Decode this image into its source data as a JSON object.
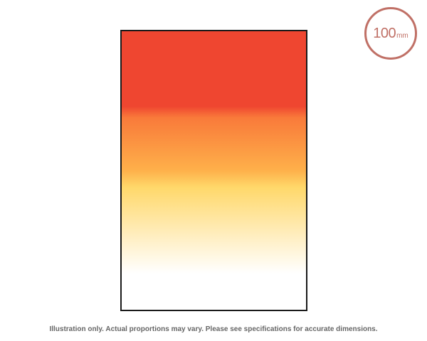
{
  "badge": {
    "value": "100",
    "unit": "mm"
  },
  "disclaimer": "Illustration only. Actual proportions may vary. Please see specifications for accurate dimensions.",
  "colors": {
    "badge_ring": "#c07066",
    "frame_border": "#1a1a1a",
    "gradient_red": "#ef4630",
    "gradient_orange": "#f97a3a",
    "gradient_amber": "#feb04a",
    "gradient_yellow": "#ffd86a",
    "gradient_pale": "#fff1cc",
    "gradient_clear": "#ffffff"
  }
}
